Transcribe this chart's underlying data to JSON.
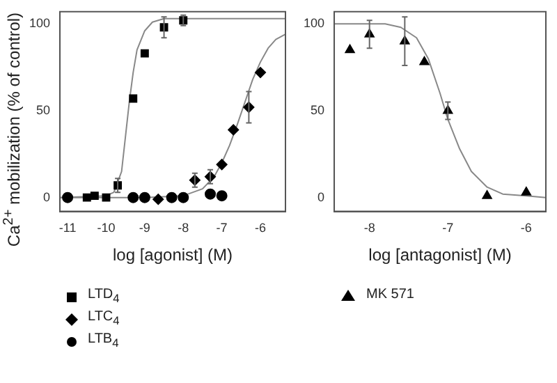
{
  "chart_data": [
    {
      "type": "scatter",
      "xlabel": "log [agonist] (M)",
      "ylabel": "Ca$^{2+}$ mobilization (% of control)",
      "xlim": [
        -11.2,
        -5.35
      ],
      "xticks": [
        -11,
        -10,
        -9,
        -8,
        -7,
        -6
      ],
      "ylim": [
        -8,
        107
      ],
      "yticks": [
        0,
        50,
        100
      ],
      "grid": false,
      "legend": "bottom",
      "series": [
        {
          "name": "LTD$_{4}$",
          "color": "#000000",
          "marker": "square",
          "x": [
            -10.5,
            -10.3,
            -10,
            -9.7,
            -9.3,
            -9,
            -8.5,
            -8
          ],
          "values": [
            0,
            1,
            0,
            7,
            57,
            83,
            98,
            102
          ],
          "errors": [
            null,
            null,
            null,
            4,
            null,
            null,
            6,
            3
          ]
        },
        {
          "name": "LTC$_{4}$",
          "color": "#000000",
          "marker": "diamond",
          "x": [
            -8.65,
            -7.7,
            -7.3,
            -7,
            -6.7,
            -6.3,
            -6
          ],
          "values": [
            -1,
            10,
            12,
            19,
            39,
            52,
            72
          ],
          "errors": [
            null,
            4,
            4,
            null,
            null,
            9,
            null
          ]
        },
        {
          "name": "LTB$_{4}$",
          "color": "#000000",
          "marker": "circle",
          "x": [
            -11,
            -9.3,
            -9,
            -8.3,
            -8,
            -7.3,
            -7
          ],
          "values": [
            0,
            0,
            0,
            0,
            0,
            2,
            1
          ]
        },
        {
          "type": "line",
          "color": "#888888",
          "marker": "none",
          "x": [
            -11.2,
            -10,
            -9.8,
            -9.6,
            -9.5,
            -9.4,
            -9.3,
            -9.2,
            -9,
            -8.8,
            -8.5,
            -5.35
          ],
          "values": [
            0,
            1,
            3,
            15,
            35,
            55,
            72,
            85,
            96,
            101,
            103,
            103
          ]
        },
        {
          "type": "line",
          "color": "#888888",
          "marker": "none",
          "x": [
            -11.2,
            -9,
            -8,
            -7.5,
            -7.2,
            -7,
            -6.8,
            -6.6,
            -6.4,
            -6.2,
            -6,
            -5.8,
            -5.6,
            -5.35
          ],
          "values": [
            0,
            0,
            1,
            5,
            12,
            20,
            30,
            42,
            55,
            68,
            78,
            86,
            91,
            94
          ]
        }
      ]
    },
    {
      "type": "scatter",
      "xlabel": "log [antagonist] (M)",
      "xlim": [
        -8.45,
        -5.75
      ],
      "xticks": [
        -8,
        -7,
        -6
      ],
      "ylim": [
        -8,
        107
      ],
      "yticks": [
        0,
        50,
        100
      ],
      "grid": false,
      "legend": "bottom",
      "series": [
        {
          "name": "MK 571",
          "color": "#000000",
          "marker": "triangle",
          "x": [
            -8.25,
            -8,
            -7.55,
            -7.3,
            -7,
            -6.5,
            -6
          ],
          "values": [
            85,
            94,
            90,
            78,
            50,
            1,
            3
          ],
          "errors": [
            null,
            8,
            14,
            null,
            5,
            null,
            null
          ]
        },
        {
          "type": "line",
          "color": "#888888",
          "marker": "none",
          "x": [
            -8.45,
            -7.8,
            -7.6,
            -7.4,
            -7.25,
            -7.1,
            -7,
            -6.85,
            -6.7,
            -6.5,
            -6.3,
            -6,
            -5.75
          ],
          "values": [
            100,
            100,
            98,
            92,
            80,
            60,
            45,
            28,
            15,
            6,
            2,
            1,
            0
          ]
        }
      ]
    }
  ]
}
